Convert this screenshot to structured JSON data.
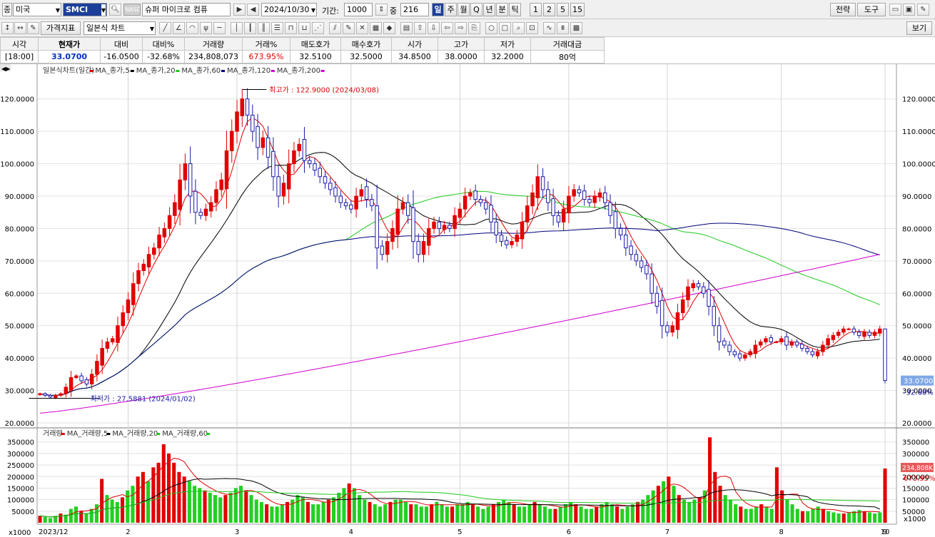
{
  "toolbar": {
    "market_label": "종",
    "market_value": "미국",
    "ticker": "SMCI",
    "badge_nasd": "NASD",
    "company": "슈퍼 마이크로 컴퓨",
    "date": "2024/10/30",
    "period_label": "기간:",
    "period_value": "1000",
    "count_label": "중",
    "count_value": "216",
    "periods": [
      "일",
      "주",
      "월",
      "Q",
      "년",
      "분",
      "틱"
    ],
    "active_period": "일",
    "intervals": [
      "1",
      "2",
      "5",
      "15"
    ],
    "right_buttons": [
      "전략",
      "도구"
    ]
  },
  "toolbar2": {
    "indicator_btn": "가격지표",
    "chart_type": "일본식 차트",
    "view_btn": "보기"
  },
  "quote": {
    "headers": [
      "시각",
      "현재가",
      "대비",
      "대비%",
      "거래량",
      "거래%",
      "매도호가",
      "매수호가",
      "시가",
      "고가",
      "저가",
      "거래대금"
    ],
    "values": [
      "[18:00]",
      "33.0700",
      "-16.0500",
      "-32.68%",
      "234,808,073",
      "673.95%",
      "32.5100",
      "32.5000",
      "34.8500",
      "38.0000",
      "32.2000",
      "80억"
    ]
  },
  "price_panel": {
    "legend_title": "일본식차트(일간)",
    "legend_items": [
      {
        "label": "MA_종가,5",
        "color": "#e00000"
      },
      {
        "label": "MA_종가,20",
        "color": "#000000"
      },
      {
        "label": "MA_종가,60",
        "color": "#1ec81e"
      },
      {
        "label": "MA_종가,120",
        "color": "#00007a"
      },
      {
        "label": "MA_종가,200",
        "color": "#d000d0"
      }
    ],
    "y_ticks": [
      "120.0000",
      "110.0000",
      "100.0000",
      "90.0000",
      "80.0000",
      "70.0000",
      "60.0000",
      "50.0000",
      "40.0000",
      "30.0000",
      "20.0000"
    ],
    "high_annotation": "최고가 : 122.9000 (2024/03/08)",
    "low_annotation": "최저가 : 27.5881 (2024/01/02)",
    "last_price": "33.0700",
    "last_change": "-32.68%"
  },
  "volume_panel": {
    "legend_title": "거래량",
    "legend_items": [
      {
        "label": "MA_거래량,5",
        "color": "#e00000"
      },
      {
        "label": "MA_거래량,20",
        "color": "#000000"
      },
      {
        "label": "MA_거래량,60",
        "color": "#1ec81e"
      }
    ],
    "y_ticks": [
      "350000",
      "300000",
      "250000",
      "200000",
      "150000",
      "100000",
      "50000"
    ],
    "unit": "x1000",
    "last_volume": "234,808K",
    "last_pct": "673.95%"
  },
  "x_axis": {
    "labels": [
      "2023/12",
      "2",
      "3",
      "4",
      "5",
      "6",
      "7",
      "8",
      "9",
      "10"
    ]
  },
  "chart_data": [
    {
      "type": "candlestick",
      "title": "일본식차트(일간)",
      "ylim": [
        20,
        125
      ],
      "x": [
        "2023/12",
        "2",
        "3",
        "4",
        "5",
        "6",
        "7",
        "8",
        "9",
        "10"
      ],
      "close_series": [
        29,
        28.5,
        28,
        28.5,
        29,
        31,
        34,
        34.5,
        33,
        32,
        35,
        39,
        43,
        45,
        46,
        50,
        54,
        58,
        63,
        67,
        69,
        72,
        74,
        78,
        80,
        84,
        88,
        95,
        100,
        90,
        85,
        84,
        86,
        88,
        92,
        95,
        104,
        110,
        116,
        120,
        115,
        110,
        105,
        108,
        102,
        96,
        90,
        94,
        100,
        104,
        106,
        101,
        100,
        98,
        96,
        94,
        92,
        90,
        88,
        87,
        86,
        90,
        92,
        89,
        87,
        74,
        72,
        76,
        80,
        86,
        88,
        84,
        76,
        72,
        76,
        80,
        82,
        80,
        81,
        80,
        84,
        86,
        90,
        91,
        89,
        88,
        86,
        82,
        78,
        76,
        75,
        76,
        78,
        82,
        87,
        91,
        96,
        92,
        88,
        84,
        82,
        86,
        90,
        92,
        91,
        89,
        88,
        90,
        91,
        88,
        84,
        80,
        78,
        74,
        72,
        70,
        68,
        66,
        60,
        56,
        50,
        48,
        50,
        54,
        58,
        62,
        63,
        62,
        60,
        56,
        50,
        45,
        44,
        42,
        41,
        40,
        41,
        42,
        44,
        45,
        46,
        45,
        45,
        46,
        44,
        45,
        44,
        43,
        42,
        41,
        42,
        44,
        46,
        47,
        48,
        49,
        49,
        48,
        47,
        48,
        47,
        48,
        49,
        33.07
      ],
      "ma": [
        {
          "name": "MA_종가,5",
          "color": "#e00000"
        },
        {
          "name": "MA_종가,20",
          "color": "#000000"
        },
        {
          "name": "MA_종가,60",
          "color": "#1ec81e"
        },
        {
          "name": "MA_종가,120",
          "color": "#00007a"
        },
        {
          "name": "MA_종가,200",
          "color": "#d000d0"
        }
      ],
      "high": {
        "value": 122.9,
        "date": "2024/03/08"
      },
      "low": {
        "value": 27.5881,
        "date": "2024/01/02"
      },
      "last": 33.07
    },
    {
      "type": "bar",
      "title": "거래량",
      "unit": "x1000",
      "ylim": [
        0,
        380000
      ],
      "values": [
        30,
        25,
        20,
        30,
        40,
        35,
        60,
        70,
        50,
        40,
        60,
        80,
        190,
        120,
        100,
        90,
        110,
        140,
        160,
        200,
        220,
        180,
        240,
        260,
        340,
        300,
        260,
        220,
        200,
        180,
        160,
        150,
        140,
        130,
        120,
        110,
        120,
        130,
        150,
        160,
        140,
        120,
        100,
        90,
        80,
        70,
        70,
        80,
        90,
        100,
        120,
        110,
        90,
        80,
        80,
        90,
        100,
        110,
        130,
        150,
        170,
        150,
        120,
        100,
        90,
        80,
        70,
        80,
        90,
        100,
        100,
        90,
        80,
        80,
        70,
        70,
        80,
        90,
        80,
        70,
        70,
        80,
        80,
        90,
        80,
        70,
        60,
        70,
        80,
        90,
        100,
        90,
        80,
        70,
        70,
        80,
        90,
        80,
        70,
        60,
        60,
        70,
        80,
        90,
        80,
        70,
        60,
        60,
        70,
        80,
        90,
        80,
        70,
        60,
        70,
        80,
        90,
        100,
        120,
        140,
        160,
        180,
        200,
        160,
        120,
        100,
        90,
        100,
        110,
        140,
        370,
        220,
        160,
        120,
        100,
        80,
        70,
        60,
        60,
        70,
        80,
        70,
        60,
        240,
        140,
        100,
        80,
        60,
        50,
        50,
        60,
        70,
        60,
        50,
        45,
        40,
        40,
        45,
        50,
        55,
        50,
        45,
        40,
        45,
        234.8
      ]
    }
  ]
}
